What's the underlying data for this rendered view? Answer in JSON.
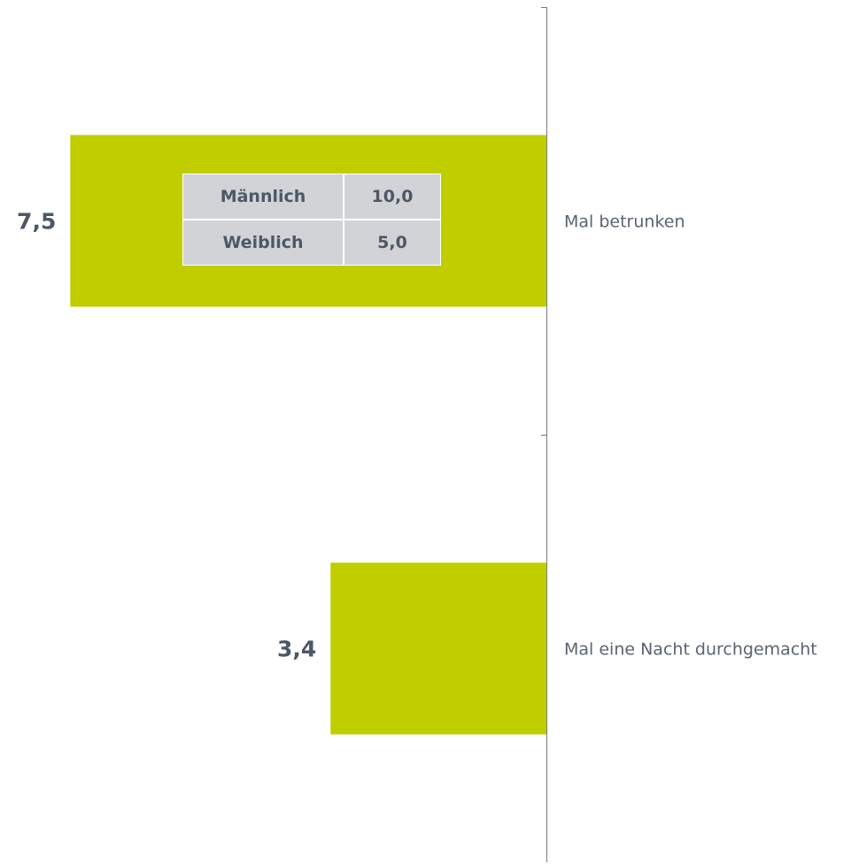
{
  "chart_data": {
    "type": "bar",
    "orientation": "horizontal",
    "bar_color": "#c0ce00",
    "categories": [
      "Mal betrunken",
      "Mal eine Nacht durchgemacht"
    ],
    "values": [
      7.5,
      3.4
    ],
    "value_labels": [
      "7,5",
      "3,4"
    ],
    "xlim": [
      0,
      8.3
    ],
    "inset_table": {
      "rows": [
        {
          "label": "Männlich",
          "value": "10,0"
        },
        {
          "label": "Weiblich",
          "value": "5,0"
        }
      ]
    }
  }
}
